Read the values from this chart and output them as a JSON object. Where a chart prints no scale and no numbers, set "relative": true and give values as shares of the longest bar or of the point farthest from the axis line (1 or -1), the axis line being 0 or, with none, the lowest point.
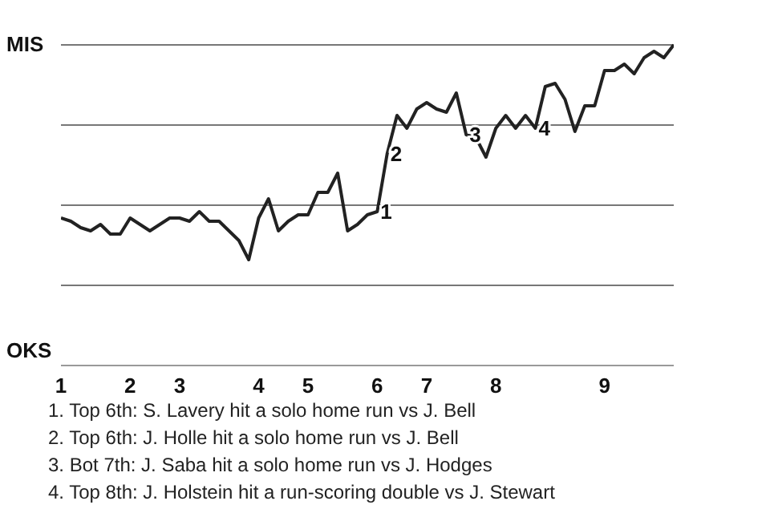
{
  "chart_data": {
    "type": "line",
    "legend": false,
    "marker": "none",
    "line_style": "solid",
    "relative": true,
    "categories": [
      "1",
      null,
      null,
      null,
      null,
      null,
      null,
      "2",
      null,
      null,
      null,
      null,
      "3",
      null,
      null,
      null,
      null,
      null,
      null,
      null,
      "4",
      null,
      null,
      null,
      null,
      "5",
      null,
      null,
      null,
      null,
      null,
      null,
      "6",
      null,
      null,
      null,
      null,
      "7",
      null,
      null,
      null,
      null,
      null,
      null,
      "8",
      null,
      null,
      null,
      null,
      null,
      null,
      null,
      null,
      null,
      null,
      "9",
      null,
      null,
      null,
      null,
      null,
      null,
      null
    ],
    "series": [
      {
        "color": "#222222",
        "values": [
          0.46,
          0.45,
          0.43,
          0.42,
          0.44,
          0.41,
          0.41,
          0.46,
          0.44,
          0.42,
          0.44,
          0.46,
          0.46,
          0.45,
          0.48,
          0.45,
          0.45,
          0.42,
          0.39,
          0.33,
          0.46,
          0.52,
          0.42,
          0.45,
          0.47,
          0.47,
          0.54,
          0.54,
          0.6,
          0.42,
          0.44,
          0.47,
          0.48,
          0.66,
          0.78,
          0.74,
          0.8,
          0.82,
          0.8,
          0.79,
          0.85,
          0.72,
          0.71,
          0.65,
          0.74,
          0.78,
          0.74,
          0.78,
          0.74,
          0.87,
          0.88,
          0.83,
          0.73,
          0.81,
          0.81,
          0.92,
          0.92,
          0.94,
          0.91,
          0.96,
          0.98,
          0.96,
          1.0
        ]
      }
    ],
    "ref_lines": [
      {
        "axis": "y",
        "value": 0.25,
        "color": "#777777"
      },
      {
        "axis": "y",
        "value": 0.5,
        "color": "#777777"
      },
      {
        "axis": "y",
        "value": 0.75,
        "color": "#777777"
      },
      {
        "axis": "y",
        "value": 1,
        "color": "#777777"
      }
    ],
    "annotations": [
      {
        "text": "1",
        "y": 0.48
      },
      {
        "text": "2",
        "y": 0.66
      },
      {
        "text": "3",
        "y": 0.72
      },
      {
        "text": "4",
        "y": 0.74
      },
      "MIS",
      "OKS",
      "1. Top 6th: S. Lavery hit a solo home run vs J. Bell",
      "2. Top 6th: J. Holle hit a solo home run vs J. Bell",
      "3. Bot 7th: J. Saba hit a solo home run vs J. Hodges",
      "4. Top 8th: J. Holstein hit a run-scoring double vs J. Stewart"
    ]
  }
}
